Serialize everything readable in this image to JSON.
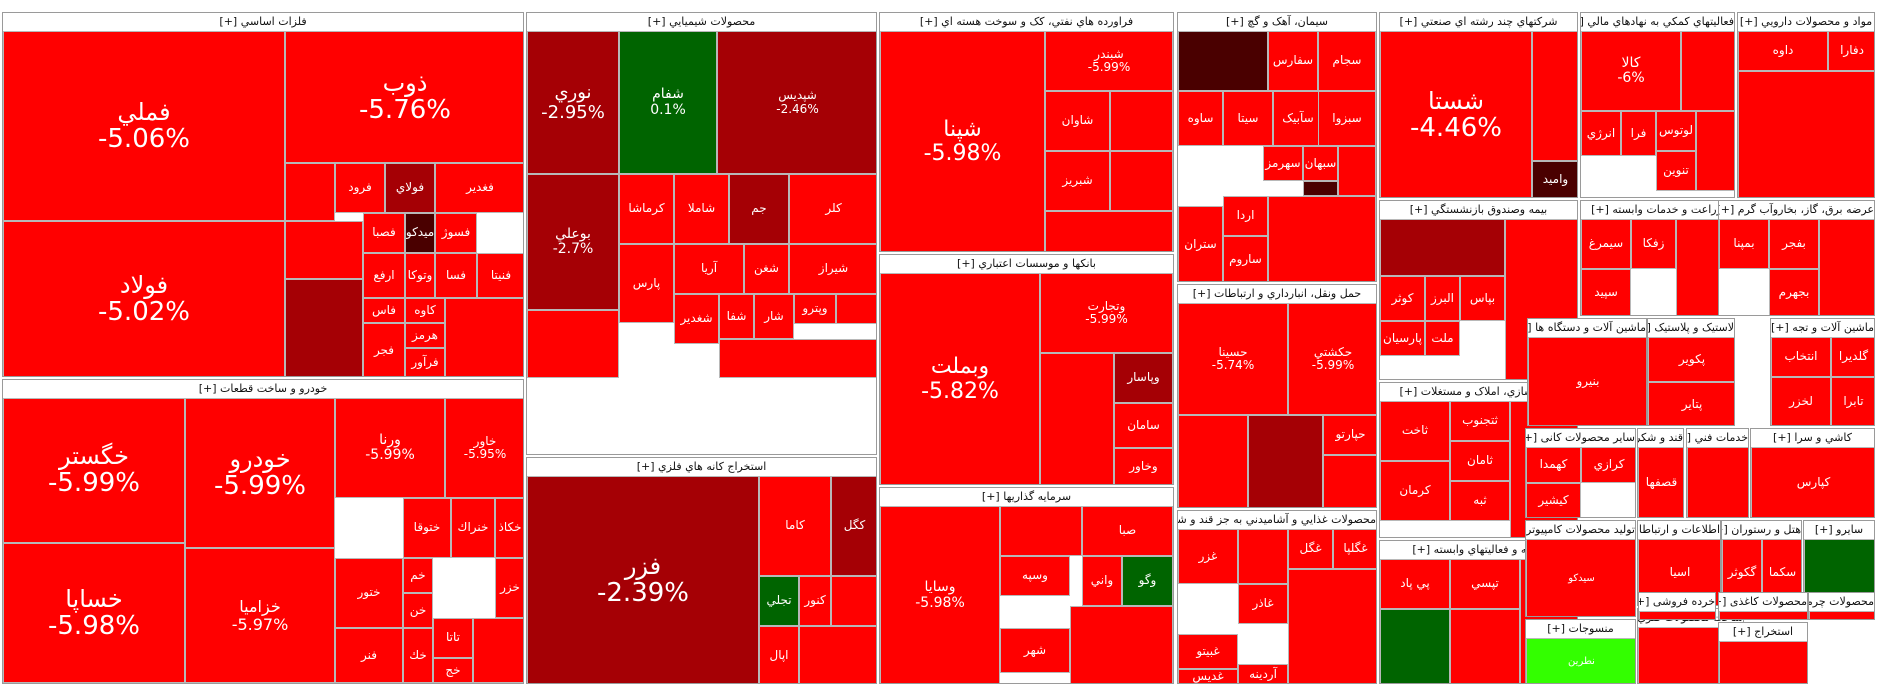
{
  "chart_data": {
    "type": "treemap",
    "color_scale": {
      "strong_negative": "#ff0000",
      "negative_dark": "#a50005",
      "very_dark": "#4a0000",
      "positive": "#006400",
      "strong_positive": "#33ff00"
    },
    "sectors": [
      {
        "name": "فلزات اساسي",
        "tiles": [
          {
            "name": "فملي",
            "change": "-5.06%"
          },
          {
            "name": "فولاد",
            "change": "-5.02%"
          },
          {
            "name": "ذوب",
            "change": "-5.76%"
          },
          {
            "name": "فغدير"
          },
          {
            "name": "فولاي"
          },
          {
            "name": "فرود"
          },
          {
            "name": "فسوژ"
          },
          {
            "name": "ميدکو"
          },
          {
            "name": "فصبا"
          },
          {
            "name": "فنيتا"
          },
          {
            "name": "فسا"
          },
          {
            "name": "وتوکا"
          },
          {
            "name": "ارفع"
          },
          {
            "name": "کاوه"
          },
          {
            "name": "فاس"
          },
          {
            "name": "هرمز"
          },
          {
            "name": "فجر"
          },
          {
            "name": "فرآور"
          }
        ]
      },
      {
        "name": "خودرو و ساخت قطعات",
        "tiles": [
          {
            "name": "خگستر",
            "change": "-5.99%"
          },
          {
            "name": "خساپا",
            "change": "-5.98%"
          },
          {
            "name": "خودرو",
            "change": "-5.99%"
          },
          {
            "name": "خزاميا",
            "change": "-5.97%"
          },
          {
            "name": "ورنا",
            "change": "-5.99%"
          },
          {
            "name": "خاور",
            "change": "-5.95%"
          },
          {
            "name": "خكاذ"
          },
          {
            "name": "خنراك"
          },
          {
            "name": "ختوقا"
          },
          {
            "name": "ختور"
          },
          {
            "name": "فنر"
          },
          {
            "name": "خم"
          },
          {
            "name": "خن"
          },
          {
            "name": "خك"
          },
          {
            "name": "خزر"
          },
          {
            "name": "تاتا"
          },
          {
            "name": "خج"
          }
        ]
      },
      {
        "name": "محصولات شيميايي",
        "tiles": [
          {
            "name": "نوري",
            "change": "-2.95%"
          },
          {
            "name": "شفام",
            "change": "0.1%"
          },
          {
            "name": "شپديس",
            "change": "-2.46%"
          },
          {
            "name": "بوعلي",
            "change": "-2.7%"
          },
          {
            "name": "کرماشا"
          },
          {
            "name": "شاملا"
          },
          {
            "name": "جم"
          },
          {
            "name": "کلر"
          },
          {
            "name": "پارس"
          },
          {
            "name": "آريا"
          },
          {
            "name": "شغن"
          },
          {
            "name": "شيراز"
          },
          {
            "name": "شغدير"
          },
          {
            "name": "شفا"
          },
          {
            "name": "شار"
          },
          {
            "name": "وپترو"
          }
        ]
      },
      {
        "name": "استخراج کانه هاي فلزي",
        "tiles": [
          {
            "name": "فزر",
            "change": "-2.39%"
          },
          {
            "name": "کاما"
          },
          {
            "name": "کگل"
          },
          {
            "name": "تجلي"
          },
          {
            "name": "کنور"
          },
          {
            "name": "اپال"
          }
        ]
      },
      {
        "name": "فراورده هاي نفتي، کک و سوخت هسته اي",
        "tiles": [
          {
            "name": "شپنا",
            "change": "-5.98%"
          },
          {
            "name": "شبندر",
            "change": "-5.99%"
          },
          {
            "name": "شاوان"
          },
          {
            "name": "شبريز"
          }
        ]
      },
      {
        "name": "بانکها و موسسات اعتباري",
        "tiles": [
          {
            "name": "وبملت",
            "change": "-5.82%"
          },
          {
            "name": "وتجارت",
            "change": "-5.99%"
          },
          {
            "name": "وپاسار"
          },
          {
            "name": "سامان"
          },
          {
            "name": "وخاور"
          }
        ]
      },
      {
        "name": "سرمايه گذاريها",
        "tiles": [
          {
            "name": "وسايا",
            "change": "-5.98%"
          },
          {
            "name": "صبا"
          },
          {
            "name": "وسپه"
          },
          {
            "name": "شهر"
          },
          {
            "name": "واني"
          },
          {
            "name": "وگو"
          }
        ]
      },
      {
        "name": "سيمان، آهک و گچ",
        "tiles": [
          {
            "name": "سجام"
          },
          {
            "name": "سفارس"
          },
          {
            "name": "سيتا"
          },
          {
            "name": "سآبيک"
          },
          {
            "name": "سبزوا"
          },
          {
            "name": "ساوه"
          },
          {
            "name": "سهرمز"
          },
          {
            "name": "سبهان"
          },
          {
            "name": "ستران"
          },
          {
            "name": "ساروم"
          },
          {
            "name": "اردا"
          }
        ]
      },
      {
        "name": "حمل ونقل، انبارداري و ارتباطات",
        "tiles": [
          {
            "name": "حسينا",
            "change": "-5.74%"
          },
          {
            "name": "حکشتي",
            "change": "-5.99%"
          },
          {
            "name": "حپارتو"
          }
        ]
      },
      {
        "name": "محصولات غذايي و آشاميدني به جز قند و شکر",
        "tiles": [
          {
            "name": "غزر"
          },
          {
            "name": "غگل"
          },
          {
            "name": "غگلپا"
          },
          {
            "name": "غاذر"
          },
          {
            "name": "غبيتو"
          },
          {
            "name": "غديس"
          },
          {
            "name": "آردينه"
          }
        ]
      },
      {
        "name": "شرکتهاي چند رشته اي صنعتي",
        "tiles": [
          {
            "name": "شستا",
            "change": "-4.46%"
          },
          {
            "name": "واميد"
          }
        ]
      },
      {
        "name": "بيمه وصندوق بازنشستگي",
        "tiles": [
          {
            "name": "کوثر"
          },
          {
            "name": "البرز"
          },
          {
            "name": "بپاس"
          },
          {
            "name": "ملت"
          },
          {
            "name": "پارسيان"
          }
        ]
      },
      {
        "name": "انبوه سازي، املاک و مستغلات",
        "tiles": [
          {
            "name": "ثاخت"
          },
          {
            "name": "ثتجنوب"
          },
          {
            "name": "ثامان"
          },
          {
            "name": "کرمان"
          },
          {
            "name": "ثبه"
          }
        ]
      },
      {
        "name": "رايانه و فعاليتهاي وابسته",
        "tiles": [
          {
            "name": "پي پاد"
          },
          {
            "name": "تپسي"
          }
        ]
      },
      {
        "name": "فعاليتهاي کمکي به نهادهاي مالي",
        "tiles": [
          {
            "name": "کالا",
            "change": "-6%"
          },
          {
            "name": "لوتوس"
          },
          {
            "name": "انرژي"
          },
          {
            "name": "فرا"
          },
          {
            "name": "تنوين"
          }
        ]
      },
      {
        "name": "زراعت و خدمات وابسته",
        "tiles": [
          {
            "name": "سيمرغ"
          },
          {
            "name": "زفکا"
          },
          {
            "name": "سپيد"
          }
        ]
      },
      {
        "name": "ماشين آلات و دستگاه ها",
        "tiles": [
          {
            "name": "بنيرو"
          }
        ]
      },
      {
        "name": "لاستيک و پلاستيک",
        "tiles": [
          {
            "name": "پکوير"
          },
          {
            "name": "پتاير"
          }
        ]
      },
      {
        "name": "ساير محصولات کانی",
        "tiles": [
          {
            "name": "کهمدا"
          },
          {
            "name": "کرازي"
          },
          {
            "name": "کيشير"
          }
        ]
      },
      {
        "name": "قند و شکر",
        "tiles": [
          {
            "name": "قصفها"
          }
        ]
      },
      {
        "name": "توليد محصولات کامپيوتری",
        "tiles": [
          {
            "name": "سيدکو"
          }
        ]
      },
      {
        "name": "منسوجات",
        "tiles": [
          {
            "name": "نطرين"
          }
        ]
      },
      {
        "name": "ساخت محصولات فلزي",
        "tiles": []
      },
      {
        "name": "اطلاعات و ارتباطات",
        "tiles": [
          {
            "name": "اسيا"
          }
        ]
      },
      {
        "name": "هتل و رستوران",
        "tiles": [
          {
            "name": "گکوثر"
          },
          {
            "name": "سكما"
          }
        ]
      },
      {
        "name": "مواد و محصولات دارويي",
        "tiles": [
          {
            "name": "دفارا"
          },
          {
            "name": "داوه"
          }
        ]
      },
      {
        "name": "عرضه برق، گاز، بخاروآب گرم",
        "tiles": [
          {
            "name": "بمپنا"
          },
          {
            "name": "بفجر"
          },
          {
            "name": "بجهرم"
          }
        ]
      },
      {
        "name": "ماشين آلات و تجه",
        "tiles": [
          {
            "name": "گلديرا"
          },
          {
            "name": "انتخاب"
          },
          {
            "name": "تابرا"
          },
          {
            "name": "لخزر"
          }
        ]
      },
      {
        "name": "خدمات فني",
        "tiles": []
      },
      {
        "name": "کاشي و سرا",
        "tiles": [
          {
            "name": "کپارس"
          }
        ]
      },
      {
        "name": "سايرو",
        "tiles": []
      },
      {
        "name": "محصولات کاغذی",
        "tiles": []
      },
      {
        "name": "خرده فروشی",
        "tiles": []
      },
      {
        "name": "محصولات چرمی",
        "tiles": []
      },
      {
        "name": "استخراج",
        "tiles": []
      }
    ]
  }
}
